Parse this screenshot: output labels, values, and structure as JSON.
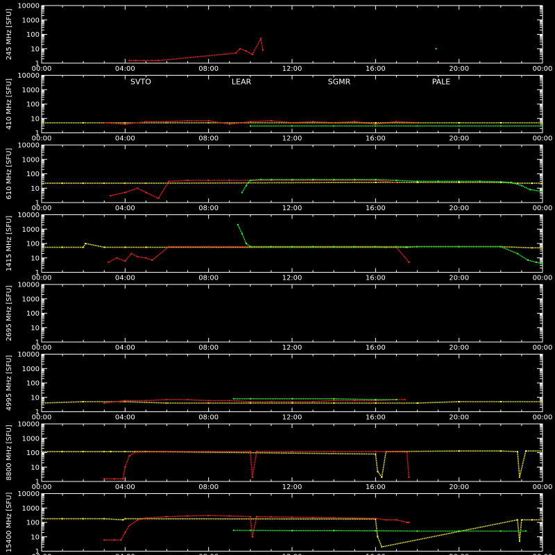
{
  "chart_data": {
    "type": "scatter",
    "y_scale": "log",
    "ylim": [
      1,
      10000
    ],
    "xlim": [
      "00:00",
      "24:00"
    ],
    "x_tick_labels": [
      "00:00",
      "04:00",
      "08:00",
      "12:00",
      "16:00",
      "20:00",
      "00:00"
    ],
    "y_tick_labels": [
      "1",
      "10",
      "100",
      "1000",
      "10000"
    ],
    "legend": [
      {
        "name": "SVTO",
        "color": "#ff2020"
      },
      {
        "name": "LEAR",
        "color": "#20e0ff"
      },
      {
        "name": "SGMR",
        "color": "#20ff20"
      },
      {
        "name": "PALE",
        "color": "#ffff20"
      }
    ],
    "panels": [
      {
        "ylabel": "245 MHz [SFU]",
        "series": [
          {
            "station": "SVTO",
            "x": [
              4.2,
              4.5,
              4.9,
              5.3,
              5.6,
              9.3,
              9.5,
              9.8,
              10.1,
              10.5,
              10.6
            ],
            "y": [
              1.5,
              1.5,
              1.5,
              1.5,
              1.5,
              5,
              10,
              7,
              4,
              50,
              8
            ]
          },
          {
            "station": "SGMR",
            "x": [
              18.9
            ],
            "y": [
              10
            ]
          }
        ]
      },
      {
        "ylabel": "410 MHz [SFU]",
        "series": [
          {
            "station": "PALE",
            "x": [
              0.0,
              2.0,
              4.0,
              6.0,
              8.0,
              12.0,
              14.0,
              16.0,
              18.0,
              20.0,
              22.0,
              24.0
            ],
            "y": [
              5,
              5,
              5,
              5,
              5,
              5,
              5,
              5,
              5,
              5,
              5,
              5
            ]
          },
          {
            "station": "SVTO",
            "x": [
              3.0,
              4.0,
              5.0,
              6.0,
              7.0,
              8.0,
              9.0,
              10.0,
              11.0,
              12.0,
              13.0,
              14.0,
              15.0,
              16.0,
              17.0,
              18.0
            ],
            "y": [
              5,
              4,
              6,
              6,
              7,
              7,
              4,
              6,
              7,
              5,
              6,
              5,
              6,
              4,
              6,
              5
            ]
          },
          {
            "station": "SGMR",
            "x": [
              10.0,
              12.0,
              14.0,
              16.0,
              18.0,
              20.0,
              22.0,
              24.0
            ],
            "y": [
              3,
              3,
              3,
              3,
              3,
              3,
              3,
              3
            ]
          }
        ]
      },
      {
        "ylabel": "610 MHz [SFU]",
        "series": [
          {
            "station": "PALE",
            "x": [
              0.0,
              1.0,
              2.0,
              3.0,
              4.0,
              5.0,
              16.0,
              17.0,
              18.0,
              20.0,
              22.0,
              22.8,
              23.5,
              24.0
            ],
            "y": [
              22,
              22,
              22,
              22,
              22,
              22,
              25,
              25,
              25,
              25,
              25,
              22,
              22,
              22
            ]
          },
          {
            "station": "SVTO",
            "x": [
              3.3,
              4.0,
              4.6,
              5.0,
              5.6,
              6.1,
              7.0,
              8.0,
              9.0,
              10.0,
              11.0,
              12.0,
              13.0,
              14.0,
              15.0,
              16.0,
              17.0
            ],
            "y": [
              3,
              5,
              10,
              5,
              2,
              30,
              35,
              35,
              35,
              35,
              35,
              35,
              35,
              35,
              35,
              35,
              25
            ]
          },
          {
            "station": "SGMR",
            "x": [
              9.6,
              9.8,
              10.0,
              10.5,
              11.0,
              12.0,
              13.0,
              14.0,
              15.0,
              16.0,
              17.0,
              18.0,
              19.0,
              20.0,
              21.0,
              22.0,
              22.5,
              23.0,
              23.4,
              24.0
            ],
            "y": [
              5,
              15,
              35,
              40,
              40,
              40,
              40,
              40,
              40,
              40,
              35,
              30,
              30,
              30,
              30,
              28,
              25,
              15,
              8,
              6
            ]
          }
        ]
      },
      {
        "ylabel": "1415 MHz [SFU]",
        "series": [
          {
            "station": "PALE",
            "x": [
              0.0,
              1.0,
              2.0,
              2.1,
              3.0,
              4.0,
              5.0,
              16.5,
              17.0,
              17.5,
              18.0,
              20.0,
              22.0,
              23.5,
              24.0
            ],
            "y": [
              55,
              55,
              55,
              100,
              55,
              55,
              55,
              55,
              55,
              55,
              60,
              60,
              60,
              50,
              50
            ]
          },
          {
            "station": "SVTO",
            "x": [
              3.2,
              3.6,
              4.0,
              4.3,
              4.6,
              5.0,
              5.3,
              6.1,
              7.0,
              8.0,
              9.0,
              10.0,
              11.0,
              12.0,
              13.0,
              14.0,
              15.0,
              16.0,
              17.0,
              17.6
            ],
            "y": [
              5,
              10,
              6,
              20,
              12,
              10,
              7,
              60,
              60,
              60,
              60,
              60,
              60,
              60,
              60,
              60,
              60,
              60,
              55,
              5
            ]
          },
          {
            "station": "SGMR",
            "x": [
              9.4,
              9.6,
              9.8,
              10.0,
              11.0,
              12.0,
              13.0,
              14.0,
              15.0,
              16.0,
              17.0,
              18.0,
              20.0,
              22.0,
              22.8,
              23.3,
              23.7,
              24.0
            ],
            "y": [
              2000,
              500,
              100,
              60,
              60,
              60,
              60,
              60,
              60,
              60,
              60,
              60,
              60,
              60,
              20,
              7,
              5,
              4
            ]
          }
        ]
      },
      {
        "ylabel": "2695 MHz [SFU]",
        "series": []
      },
      {
        "ylabel": "4995 MHz [SFU]",
        "series": [
          {
            "station": "PALE",
            "x": [
              0.0,
              2.0,
              4.0,
              6.0,
              8.0,
              10.0,
              12.0,
              14.0,
              16.0,
              18.0,
              20.0,
              22.0,
              24.0
            ],
            "y": [
              4,
              5,
              5,
              4,
              4,
              4,
              4,
              4,
              4,
              4,
              5,
              5,
              5
            ]
          },
          {
            "station": "SVTO",
            "x": [
              3.0,
              4.0,
              5.0,
              6.0,
              7.0,
              8.0,
              9.0,
              10.0,
              11.0,
              12.0,
              13.0,
              14.0,
              15.0,
              16.0,
              17.0,
              17.4
            ],
            "y": [
              4,
              6,
              6,
              7,
              7,
              6,
              6,
              5,
              5,
              5,
              5,
              6,
              6,
              6,
              7,
              7
            ]
          },
          {
            "station": "SGMR",
            "x": [
              9.2,
              10.0,
              12.0,
              14.0,
              16.0,
              17.0
            ],
            "y": [
              8,
              8,
              8,
              8,
              7,
              7
            ]
          }
        ]
      },
      {
        "ylabel": "8800 MHz [SFU]",
        "series": [
          {
            "station": "PALE",
            "x": [
              0.0,
              1.0,
              2.0,
              3.0,
              3.3,
              4.0,
              4.5,
              5.0,
              16.0,
              16.1,
              16.3,
              16.5,
              20.0,
              22.0,
              22.8,
              22.9,
              23.2,
              24.0
            ],
            "y": [
              120,
              120,
              120,
              120,
              120,
              120,
              120,
              120,
              80,
              5,
              2,
              120,
              130,
              130,
              120,
              2,
              130,
              130
            ]
          },
          {
            "station": "SVTO",
            "x": [
              3.0,
              3.5,
              3.9,
              4.0,
              4.2,
              4.5,
              6.0,
              8.0,
              10.0,
              10.1,
              10.3,
              12.0,
              14.0,
              16.0,
              16.5,
              17.0,
              17.5,
              17.6
            ],
            "y": [
              1.5,
              1.5,
              1.5,
              10,
              60,
              110,
              120,
              120,
              120,
              2,
              120,
              120,
              120,
              120,
              120,
              120,
              110,
              2
            ]
          }
        ]
      },
      {
        "ylabel": "15400 MHz [SFU]",
        "series": [
          {
            "station": "PALE",
            "x": [
              0.0,
              1.0,
              2.0,
              3.0,
              3.9,
              4.0,
              16.0,
              16.1,
              16.3,
              22.8,
              22.9,
              23.0,
              23.5,
              24.0
            ],
            "y": [
              180,
              180,
              180,
              180,
              150,
              180,
              170,
              10,
              2,
              150,
              5,
              150,
              150,
              150
            ]
          },
          {
            "station": "SVTO",
            "x": [
              3.0,
              3.5,
              3.8,
              4.0,
              4.2,
              4.6,
              5.0,
              6.0,
              7.0,
              8.0,
              9.0,
              10.0,
              10.1,
              10.3,
              11.0,
              12.0,
              13.0,
              14.0,
              15.0,
              16.0,
              16.5,
              17.0,
              17.5,
              17.6
            ],
            "y": [
              6,
              6,
              6,
              20,
              60,
              150,
              200,
              250,
              280,
              300,
              280,
              250,
              10,
              250,
              240,
              230,
              220,
              210,
              200,
              190,
              150,
              150,
              100,
              100
            ]
          },
          {
            "station": "SGMR",
            "x": [
              9.2,
              10.0,
              12.0,
              14.0,
              16.0,
              18.0,
              20.0,
              22.0,
              23.2
            ],
            "y": [
              28,
              28,
              27,
              27,
              26,
              25,
              25,
              25,
              25
            ]
          }
        ]
      }
    ]
  }
}
